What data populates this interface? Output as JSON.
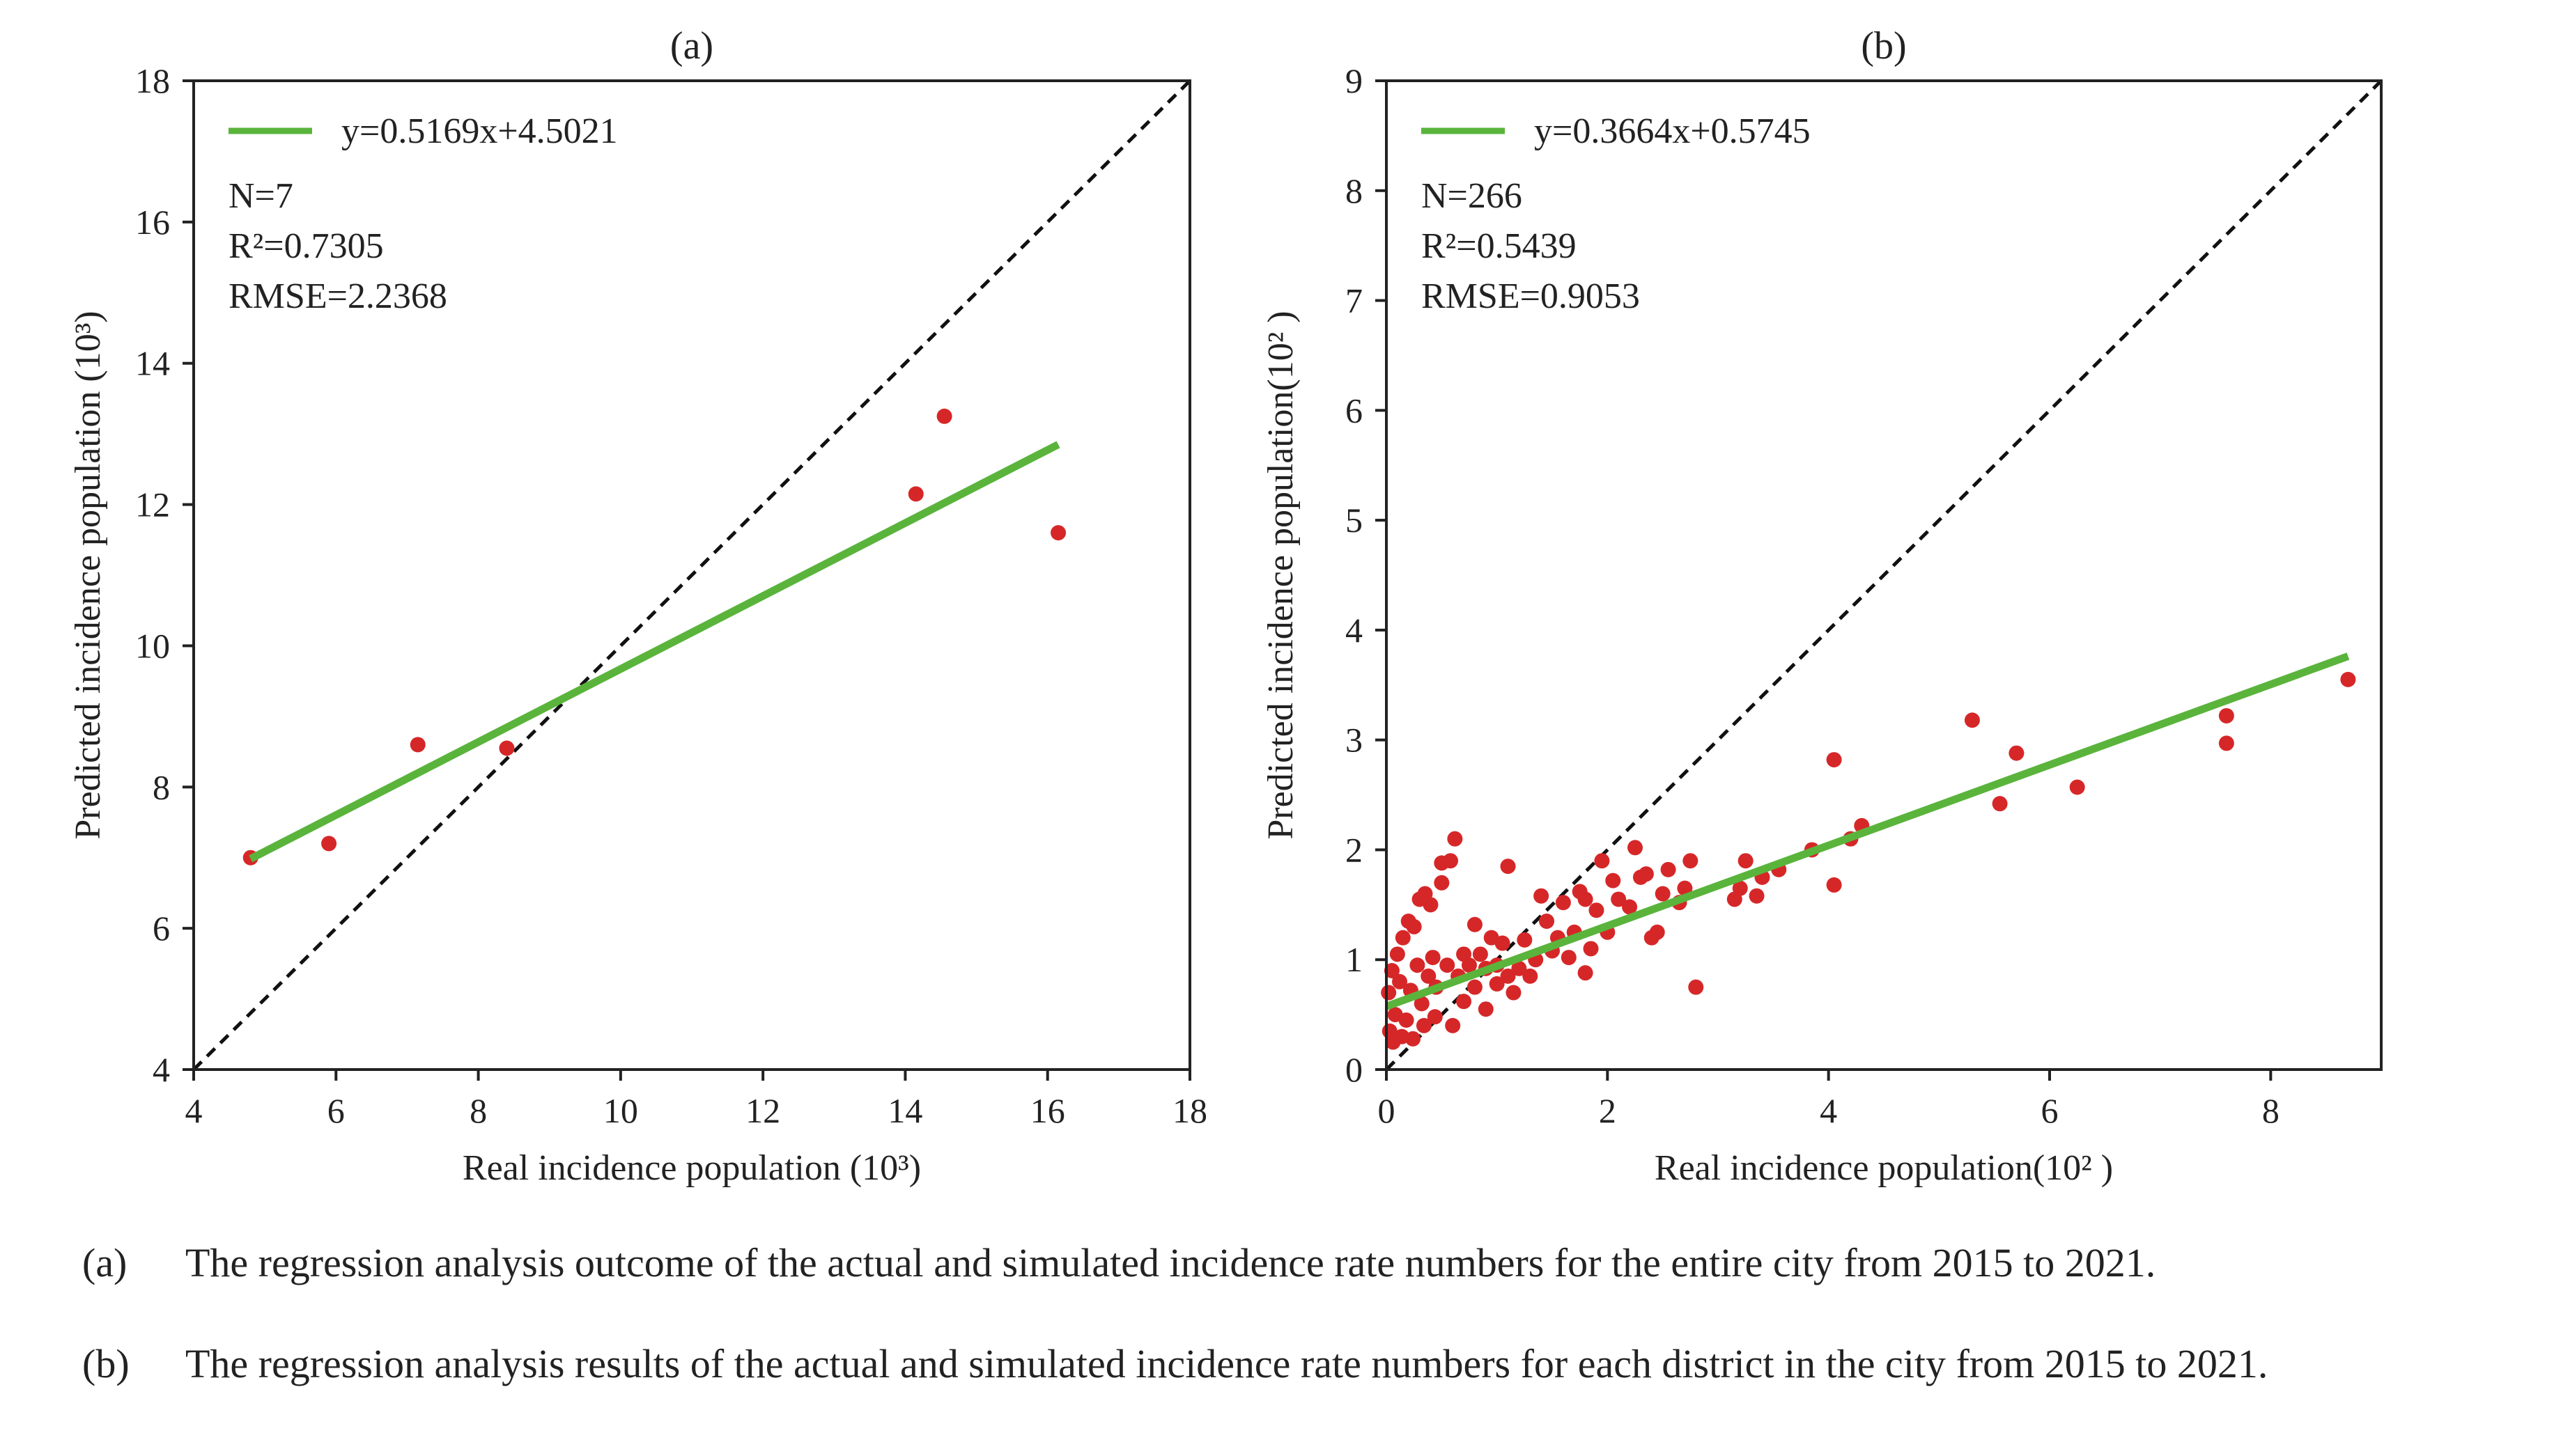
{
  "chart_data": [
    {
      "type": "scatter",
      "panel_label": "(a)",
      "xlabel": "Real incidence population (10³)",
      "ylabel": "Predicted incidence population (10³)",
      "xlim": [
        4,
        18
      ],
      "ylim": [
        4,
        18
      ],
      "xticks": [
        "4",
        "6",
        "8",
        "10",
        "12",
        "14",
        "16",
        "18"
      ],
      "yticks": [
        "4",
        "6",
        "8",
        "10",
        "12",
        "14",
        "16",
        "18"
      ],
      "grid": false,
      "legend_position": "top-left",
      "colors": {
        "points": "#d62728",
        "fit": "#5ab43c",
        "identity": "#111111"
      },
      "fit": {
        "label": "y=0.5169x+4.5021",
        "slope": 0.5169,
        "intercept": 4.5021,
        "x_range": [
          4.8,
          16.15
        ]
      },
      "identity_line": true,
      "stats": [
        "N=7",
        "R²=0.7305",
        "RMSE=2.2368"
      ],
      "points": [
        [
          4.8,
          7.0
        ],
        [
          5.9,
          7.2
        ],
        [
          7.15,
          8.6
        ],
        [
          8.4,
          8.55
        ],
        [
          14.15,
          12.15
        ],
        [
          14.55,
          13.25
        ],
        [
          16.15,
          11.6
        ]
      ]
    },
    {
      "type": "scatter",
      "panel_label": "(b)",
      "xlabel": "Real incidence population(10² )",
      "ylabel": "Predicted incidence population(10² )",
      "xlim": [
        0,
        9
      ],
      "ylim": [
        0,
        9
      ],
      "xticks": [
        "0",
        "2",
        "4",
        "6",
        "8"
      ],
      "yticks": [
        "0",
        "1",
        "2",
        "3",
        "4",
        "5",
        "6",
        "7",
        "8",
        "9"
      ],
      "grid": false,
      "legend_position": "top-left",
      "colors": {
        "points": "#d62728",
        "fit": "#5ab43c",
        "identity": "#111111"
      },
      "fit": {
        "label": "y=0.3664x+0.5745",
        "slope": 0.3664,
        "intercept": 0.5745,
        "x_range": [
          0,
          8.7
        ]
      },
      "identity_line": true,
      "stats": [
        "N=266",
        "R²=0.5439",
        "RMSE=0.9053"
      ],
      "points": [
        [
          8.7,
          3.55
        ],
        [
          7.6,
          3.22
        ],
        [
          7.6,
          2.97
        ],
        [
          6.25,
          2.57
        ],
        [
          5.7,
          2.88
        ],
        [
          5.55,
          2.42
        ],
        [
          5.3,
          3.18
        ],
        [
          4.3,
          2.22
        ],
        [
          4.2,
          2.1
        ],
        [
          4.05,
          2.82
        ],
        [
          4.05,
          1.68
        ],
        [
          3.85,
          2.0
        ],
        [
          3.55,
          1.82
        ],
        [
          3.4,
          1.75
        ],
        [
          3.35,
          1.58
        ],
        [
          3.25,
          1.9
        ],
        [
          3.2,
          1.65
        ],
        [
          3.15,
          1.55
        ],
        [
          2.8,
          0.75
        ],
        [
          2.75,
          1.9
        ],
        [
          2.7,
          1.65
        ],
        [
          2.65,
          1.52
        ],
        [
          2.55,
          1.82
        ],
        [
          2.5,
          1.6
        ],
        [
          2.45,
          1.25
        ],
        [
          2.4,
          1.2
        ],
        [
          2.35,
          1.78
        ],
        [
          2.3,
          1.75
        ],
        [
          2.25,
          2.02
        ],
        [
          2.2,
          1.48
        ],
        [
          2.1,
          1.55
        ],
        [
          2.05,
          1.72
        ],
        [
          2.0,
          1.25
        ],
        [
          1.95,
          1.9
        ],
        [
          1.9,
          1.45
        ],
        [
          1.85,
          1.1
        ],
        [
          1.8,
          0.88
        ],
        [
          1.8,
          1.55
        ],
        [
          1.75,
          1.62
        ],
        [
          1.7,
          1.25
        ],
        [
          1.65,
          1.02
        ],
        [
          1.6,
          1.52
        ],
        [
          1.55,
          1.2
        ],
        [
          1.5,
          1.08
        ],
        [
          1.45,
          1.35
        ],
        [
          1.4,
          1.58
        ],
        [
          1.35,
          1.0
        ],
        [
          1.3,
          0.85
        ],
        [
          1.25,
          1.18
        ],
        [
          1.2,
          0.92
        ],
        [
          1.15,
          0.7
        ],
        [
          1.1,
          1.85
        ],
        [
          1.1,
          0.85
        ],
        [
          1.05,
          1.15
        ],
        [
          1.0,
          0.78
        ],
        [
          1.0,
          0.95
        ],
        [
          0.95,
          1.2
        ],
        [
          0.9,
          0.92
        ],
        [
          0.9,
          0.55
        ],
        [
          0.85,
          1.05
        ],
        [
          0.8,
          0.75
        ],
        [
          0.8,
          1.32
        ],
        [
          0.75,
          0.95
        ],
        [
          0.7,
          0.62
        ],
        [
          0.7,
          1.05
        ],
        [
          0.65,
          0.85
        ],
        [
          0.62,
          2.1
        ],
        [
          0.6,
          0.4
        ],
        [
          0.58,
          1.9
        ],
        [
          0.55,
          0.95
        ],
        [
          0.5,
          1.88
        ],
        [
          0.5,
          1.7
        ],
        [
          0.45,
          0.75
        ],
        [
          0.42,
          1.02
        ],
        [
          0.4,
          1.5
        ],
        [
          0.38,
          0.85
        ],
        [
          0.35,
          1.6
        ],
        [
          0.32,
          0.6
        ],
        [
          0.3,
          1.55
        ],
        [
          0.28,
          0.95
        ],
        [
          0.25,
          1.3
        ],
        [
          0.22,
          0.72
        ],
        [
          0.2,
          1.35
        ],
        [
          0.18,
          0.45
        ],
        [
          0.15,
          1.2
        ],
        [
          0.12,
          0.8
        ],
        [
          0.1,
          1.05
        ],
        [
          0.08,
          0.5
        ],
        [
          0.05,
          0.9
        ],
        [
          0.03,
          0.35
        ],
        [
          0.02,
          0.7
        ],
        [
          0.06,
          0.25
        ],
        [
          0.14,
          0.3
        ],
        [
          0.24,
          0.28
        ],
        [
          0.34,
          0.4
        ],
        [
          0.44,
          0.48
        ]
      ]
    }
  ],
  "captions": [
    {
      "label": "(a)",
      "text": "The regression analysis outcome of the actual and simulated incidence rate numbers for the entire city from 2015 to 2021."
    },
    {
      "label": "(b)",
      "text": "The regression analysis results of the actual and simulated incidence rate numbers for each district in the city from 2015 to 2021."
    }
  ]
}
